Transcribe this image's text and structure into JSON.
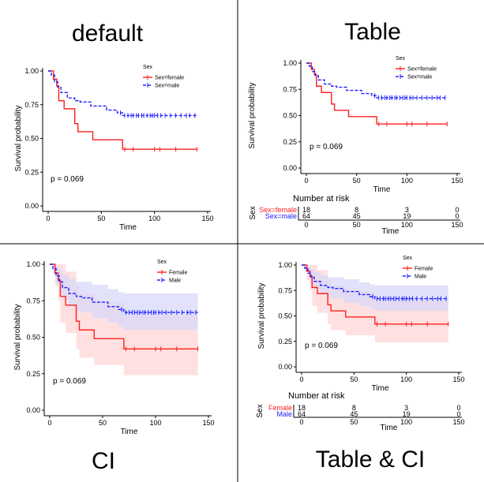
{
  "panels": [
    {
      "title": "default",
      "p_value": "p = 0.069",
      "show_ci": false,
      "show_table": false,
      "legend_title": "Sex",
      "ylabel": "Survival probability",
      "xlabel": "Time"
    },
    {
      "title": "Table",
      "p_value": "p = 0.069",
      "show_ci": false,
      "show_table": true,
      "legend_title": "Sex",
      "ylabel": "Survival probability",
      "xlabel": "Time",
      "table_title": "Number at risk",
      "table_ylabel": "Sex",
      "table_xlabel": "Time"
    },
    {
      "title": "CI",
      "p_value": "p = 0.069",
      "show_ci": true,
      "show_table": false,
      "legend_title": "Sex",
      "ylabel": "Survival probability",
      "xlabel": "Time"
    },
    {
      "title": "Table & CI",
      "p_value": "p = 0.069",
      "show_ci": true,
      "show_table": true,
      "legend_title": "Sex",
      "ylabel": "Survival probability",
      "xlabel": "Time",
      "table_title": "Number at risk",
      "table_ylabel": "Sex",
      "table_xlabel": "Time"
    }
  ],
  "colors": {
    "female": "#ff2020",
    "male": "#2020ff",
    "female_ci": "#ffd6d6",
    "male_ci": "#d8d8fa"
  },
  "chart_data": [
    {
      "type": "line",
      "title": "default",
      "xlabel": "Time",
      "ylabel": "Survival probability",
      "xlim": [
        0,
        150
      ],
      "ylim": [
        0,
        1
      ],
      "xticks": [
        "0",
        "50",
        "100",
        "150"
      ],
      "yticks": [
        "0.00",
        "0.25",
        "0.50",
        "0.75",
        "1.00"
      ],
      "legend_title": "Sex",
      "legend_position": "top-right",
      "series": [
        {
          "name": "Sex=female",
          "x": [
            0,
            5,
            8,
            10,
            15,
            25,
            28,
            42,
            70,
            140
          ],
          "y": [
            1.0,
            0.94,
            0.89,
            0.78,
            0.72,
            0.61,
            0.55,
            0.49,
            0.42,
            0.42
          ],
          "censor_x": [
            72,
            80,
            100,
            105,
            120,
            140
          ]
        },
        {
          "name": "Sex=male",
          "x": [
            0,
            3,
            6,
            9,
            12,
            18,
            25,
            30,
            40,
            55,
            65,
            70,
            140
          ],
          "y": [
            1.0,
            0.97,
            0.92,
            0.88,
            0.84,
            0.8,
            0.78,
            0.77,
            0.74,
            0.71,
            0.69,
            0.67,
            0.67
          ],
          "censor_x": [
            68,
            72,
            75,
            78,
            80,
            83,
            85,
            88,
            90,
            93,
            96,
            98,
            100,
            103,
            106,
            110,
            115,
            120,
            125,
            130,
            133,
            138
          ]
        }
      ]
    },
    {
      "type": "line",
      "title": "Table",
      "xlabel": "Time",
      "ylabel": "Survival probability",
      "xlim": [
        0,
        150
      ],
      "ylim": [
        0,
        1
      ],
      "xticks": [
        "0",
        "50",
        "100",
        "150"
      ],
      "yticks": [
        "0.00",
        "0.25",
        "0.50",
        "0.75",
        "1.00"
      ],
      "legend_title": "Sex",
      "legend_position": "top-right",
      "series": [
        {
          "name": "Sex=female",
          "x": [
            0,
            5,
            8,
            10,
            15,
            25,
            28,
            42,
            70,
            140
          ],
          "y": [
            1.0,
            0.94,
            0.89,
            0.78,
            0.72,
            0.61,
            0.55,
            0.49,
            0.42,
            0.42
          ],
          "censor_x": [
            72,
            80,
            100,
            105,
            120,
            140
          ]
        },
        {
          "name": "Sex=male",
          "x": [
            0,
            3,
            6,
            9,
            12,
            18,
            25,
            30,
            40,
            55,
            65,
            70,
            140
          ],
          "y": [
            1.0,
            0.97,
            0.92,
            0.88,
            0.84,
            0.8,
            0.78,
            0.77,
            0.74,
            0.71,
            0.69,
            0.67,
            0.67
          ],
          "censor_x": [
            68,
            72,
            75,
            78,
            80,
            83,
            85,
            88,
            90,
            93,
            96,
            98,
            100,
            103,
            106,
            110,
            115,
            120,
            125,
            130,
            133,
            138
          ]
        }
      ],
      "risk_table": {
        "times": [
          "0",
          "50",
          "100",
          "150"
        ],
        "rows": [
          {
            "label": "Sex=female",
            "values": [
              "18",
              "8",
              "3",
              "0"
            ]
          },
          {
            "label": "Sex=male",
            "values": [
              "64",
              "45",
              "19",
              "0"
            ]
          }
        ]
      }
    },
    {
      "type": "area",
      "title": "CI",
      "xlabel": "Time",
      "ylabel": "Survival probability",
      "xlim": [
        0,
        150
      ],
      "ylim": [
        0,
        1
      ],
      "xticks": [
        "0",
        "50",
        "100",
        "150"
      ],
      "yticks": [
        "0.00",
        "0.25",
        "0.50",
        "0.75",
        "1.00"
      ],
      "legend_title": "Sex",
      "legend_position": "top-right",
      "series": [
        {
          "name": "Female",
          "x": [
            0,
            5,
            8,
            10,
            15,
            25,
            28,
            42,
            70,
            140
          ],
          "y": [
            1.0,
            0.94,
            0.89,
            0.78,
            0.72,
            0.61,
            0.55,
            0.49,
            0.42,
            0.42
          ],
          "lower": [
            1.0,
            0.85,
            0.75,
            0.6,
            0.53,
            0.42,
            0.36,
            0.31,
            0.24,
            0.24
          ],
          "upper": [
            1.0,
            1.0,
            1.0,
            1.0,
            0.95,
            0.86,
            0.8,
            0.74,
            0.65,
            0.65
          ],
          "censor_x": [
            72,
            80,
            100,
            105,
            120,
            140
          ]
        },
        {
          "name": "Male",
          "x": [
            0,
            3,
            6,
            9,
            12,
            18,
            25,
            30,
            40,
            55,
            65,
            70,
            140
          ],
          "y": [
            1.0,
            0.97,
            0.92,
            0.88,
            0.84,
            0.8,
            0.78,
            0.77,
            0.74,
            0.71,
            0.69,
            0.67,
            0.67
          ],
          "lower": [
            1.0,
            0.93,
            0.86,
            0.8,
            0.76,
            0.71,
            0.68,
            0.67,
            0.63,
            0.6,
            0.57,
            0.55,
            0.55
          ],
          "upper": [
            1.0,
            1.0,
            0.98,
            0.96,
            0.93,
            0.9,
            0.88,
            0.88,
            0.86,
            0.83,
            0.81,
            0.8,
            0.8
          ],
          "censor_x": [
            68,
            72,
            75,
            78,
            80,
            83,
            85,
            88,
            90,
            93,
            96,
            98,
            100,
            103,
            106,
            110,
            115,
            120,
            125,
            130,
            133,
            138
          ]
        }
      ]
    },
    {
      "type": "area",
      "title": "Table & CI",
      "xlabel": "Time",
      "ylabel": "Survival probability",
      "xlim": [
        0,
        150
      ],
      "ylim": [
        0,
        1
      ],
      "xticks": [
        "0",
        "50",
        "100",
        "150"
      ],
      "yticks": [
        "0.00",
        "0.25",
        "0.50",
        "0.75",
        "1.00"
      ],
      "legend_title": "Sex",
      "legend_position": "top-right",
      "series": [
        {
          "name": "Female",
          "x": [
            0,
            5,
            8,
            10,
            15,
            25,
            28,
            42,
            70,
            140
          ],
          "y": [
            1.0,
            0.94,
            0.89,
            0.78,
            0.72,
            0.61,
            0.55,
            0.49,
            0.42,
            0.42
          ],
          "lower": [
            1.0,
            0.85,
            0.75,
            0.6,
            0.53,
            0.42,
            0.36,
            0.31,
            0.24,
            0.24
          ],
          "upper": [
            1.0,
            1.0,
            1.0,
            1.0,
            0.95,
            0.86,
            0.8,
            0.74,
            0.65,
            0.65
          ],
          "censor_x": [
            72,
            80,
            100,
            105,
            120,
            140
          ]
        },
        {
          "name": "Male",
          "x": [
            0,
            3,
            6,
            9,
            12,
            18,
            25,
            30,
            40,
            55,
            65,
            70,
            140
          ],
          "y": [
            1.0,
            0.97,
            0.92,
            0.88,
            0.84,
            0.8,
            0.78,
            0.77,
            0.74,
            0.71,
            0.69,
            0.67,
            0.67
          ],
          "lower": [
            1.0,
            0.93,
            0.86,
            0.8,
            0.76,
            0.71,
            0.68,
            0.67,
            0.63,
            0.6,
            0.57,
            0.55,
            0.55
          ],
          "upper": [
            1.0,
            1.0,
            0.98,
            0.96,
            0.93,
            0.9,
            0.88,
            0.88,
            0.86,
            0.83,
            0.81,
            0.8,
            0.8
          ],
          "censor_x": [
            68,
            72,
            75,
            78,
            80,
            83,
            85,
            88,
            90,
            93,
            96,
            98,
            100,
            103,
            106,
            110,
            115,
            120,
            125,
            130,
            133,
            138
          ]
        }
      ],
      "risk_table": {
        "times": [
          "0",
          "50",
          "100",
          "150"
        ],
        "rows": [
          {
            "label": "Female",
            "values": [
              "18",
              "8",
              "3",
              "0"
            ]
          },
          {
            "label": "Male",
            "values": [
              "64",
              "45",
              "19",
              "0"
            ]
          }
        ]
      }
    }
  ]
}
